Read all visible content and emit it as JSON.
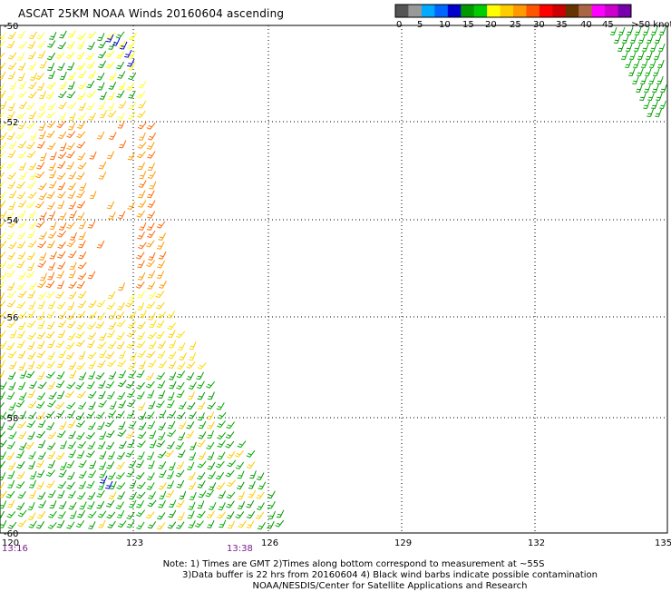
{
  "title": "ASCAT 25KM NOAA Winds 20160604 ascending",
  "legend": {
    "colors": [
      "#555555",
      "#999999",
      "#00aaff",
      "#0066ff",
      "#0000cc",
      "#009900",
      "#00cc00",
      "#ffff00",
      "#ffcc00",
      "#ff9900",
      "#ff5500",
      "#ff0000",
      "#cc0000",
      "#663300",
      "#aa6644",
      "#ff00ff",
      "#cc00cc",
      "#7700aa"
    ],
    "labels": [
      "0",
      "5",
      "10",
      "15",
      "20",
      "25",
      "30",
      "35",
      "40",
      "45",
      ">50 knots"
    ]
  },
  "axes": {
    "lat_labels": [
      "-50",
      "-52",
      "-54",
      "-56",
      "-58",
      "-60"
    ],
    "lon_labels": [
      "120",
      "123",
      "126",
      "129",
      "132",
      "135"
    ]
  },
  "times": [
    "13:16",
    "13:38"
  ],
  "notes": [
    "Note: 1) Times are GMT 2)Times along bottom correspond to measurement at ~55S",
    "3)Data buffer is 22 hrs from 20160604 4) Black wind barbs indicate possible contamination",
    "NOAA/NESDIS/Center for Satellite Applications and Research"
  ]
}
